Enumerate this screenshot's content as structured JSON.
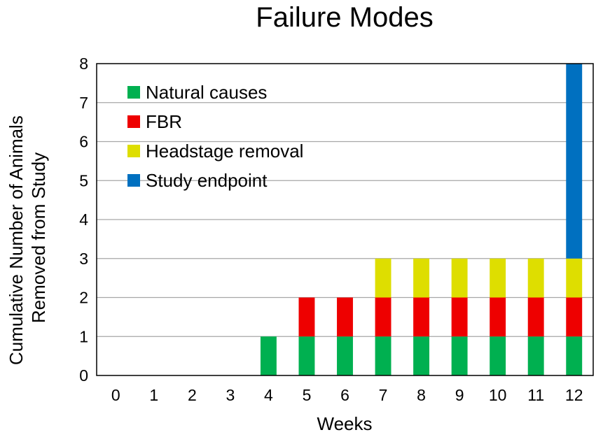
{
  "chart_data": {
    "type": "bar",
    "stacked": true,
    "title": "Failure Modes",
    "xlabel": "Weeks",
    "ylabel": [
      "Cumulative Number of Animals",
      "Removed from Study"
    ],
    "categories": [
      "0",
      "1",
      "2",
      "3",
      "4",
      "5",
      "6",
      "7",
      "8",
      "9",
      "10",
      "11",
      "12"
    ],
    "yticks": [
      "0",
      "1",
      "2",
      "3",
      "4",
      "5",
      "6",
      "7",
      "8"
    ],
    "ylim": [
      0,
      8
    ],
    "grid": "horizontal",
    "legend_position": "top-left",
    "series": [
      {
        "name": "Natural causes",
        "color": "#00b050",
        "values": [
          0,
          0,
          0,
          0,
          1,
          1,
          1,
          1,
          1,
          1,
          1,
          1,
          1
        ]
      },
      {
        "name": "FBR",
        "color": "#ee0000",
        "values": [
          0,
          0,
          0,
          0,
          0,
          1,
          1,
          1,
          1,
          1,
          1,
          1,
          1
        ]
      },
      {
        "name": "Headstage removal",
        "color": "#dede00",
        "values": [
          0,
          0,
          0,
          0,
          0,
          0,
          0,
          1,
          1,
          1,
          1,
          1,
          1
        ]
      },
      {
        "name": "Study endpoint",
        "color": "#0070c0",
        "values": [
          0,
          0,
          0,
          0,
          0,
          0,
          0,
          0,
          0,
          0,
          0,
          0,
          5
        ]
      }
    ]
  }
}
